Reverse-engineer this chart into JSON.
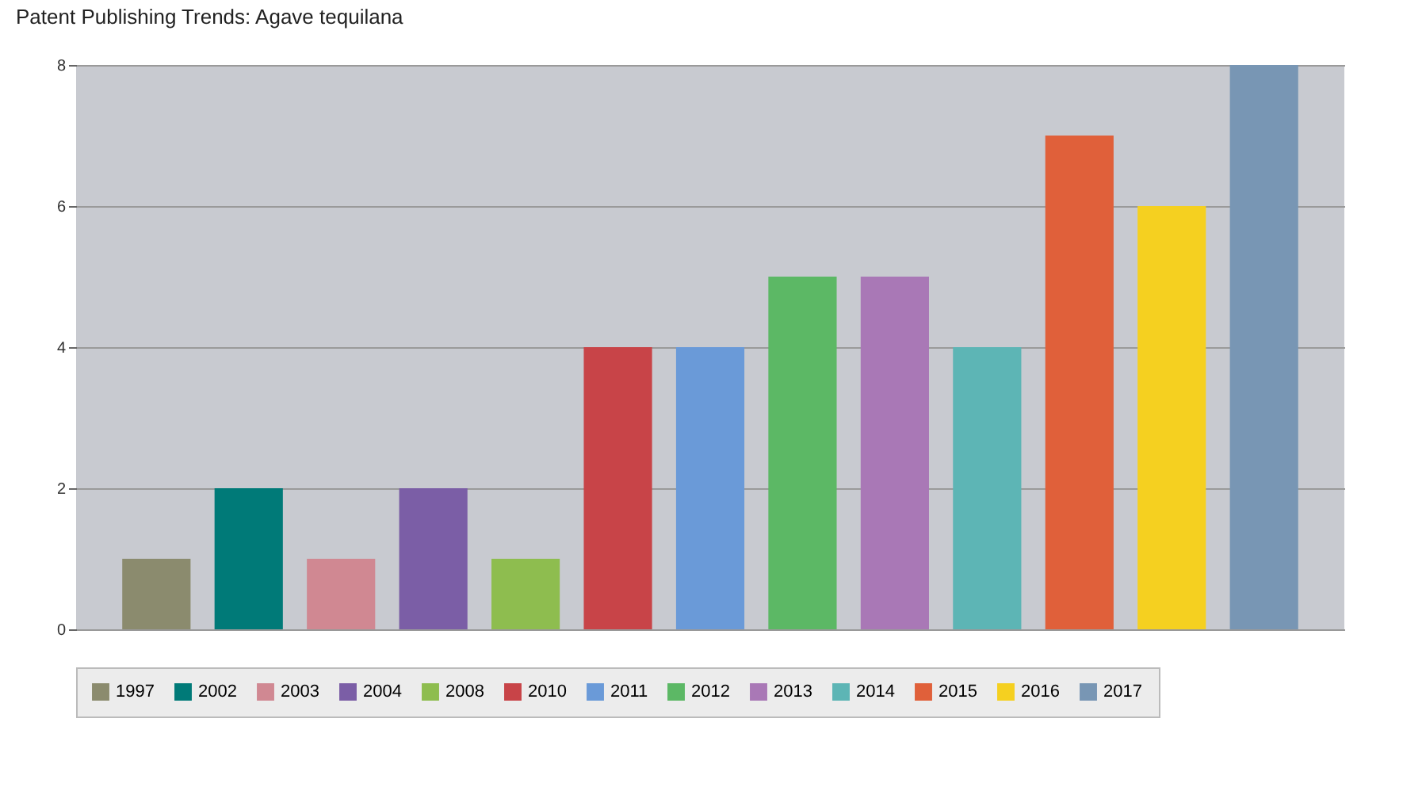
{
  "chart_data": {
    "type": "bar",
    "title": "Patent Publishing Trends: Agave tequilana",
    "categories": [
      null,
      null,
      null,
      null,
      null,
      null,
      null,
      null,
      null,
      null,
      null,
      null,
      null
    ],
    "series": [
      {
        "name": "1997",
        "color": "#8b8b6e",
        "values": [
          1,
          null,
          null,
          null,
          null,
          null,
          null,
          null,
          null,
          null,
          null,
          null,
          null
        ]
      },
      {
        "name": "2002",
        "color": "#007a78",
        "values": [
          null,
          2,
          null,
          null,
          null,
          null,
          null,
          null,
          null,
          null,
          null,
          null,
          null
        ]
      },
      {
        "name": "2003",
        "color": "#d08892",
        "values": [
          null,
          null,
          1,
          null,
          null,
          null,
          null,
          null,
          null,
          null,
          null,
          null,
          null
        ]
      },
      {
        "name": "2004",
        "color": "#7b5ea6",
        "values": [
          null,
          null,
          null,
          2,
          null,
          null,
          null,
          null,
          null,
          null,
          null,
          null,
          null
        ]
      },
      {
        "name": "2008",
        "color": "#8ebd4f",
        "values": [
          null,
          null,
          null,
          null,
          1,
          null,
          null,
          null,
          null,
          null,
          null,
          null,
          null
        ]
      },
      {
        "name": "2010",
        "color": "#c84448",
        "values": [
          null,
          null,
          null,
          null,
          null,
          4,
          null,
          null,
          null,
          null,
          null,
          null,
          null
        ]
      },
      {
        "name": "2011",
        "color": "#6a9ad8",
        "values": [
          null,
          null,
          null,
          null,
          null,
          null,
          4,
          null,
          null,
          null,
          null,
          null,
          null
        ]
      },
      {
        "name": "2012",
        "color": "#5cb865",
        "values": [
          null,
          null,
          null,
          null,
          null,
          null,
          null,
          5,
          null,
          null,
          null,
          null,
          null
        ]
      },
      {
        "name": "2013",
        "color": "#a978b6",
        "values": [
          null,
          null,
          null,
          null,
          null,
          null,
          null,
          null,
          5,
          null,
          null,
          null,
          null
        ]
      },
      {
        "name": "2014",
        "color": "#5db5b5",
        "values": [
          null,
          null,
          null,
          null,
          null,
          null,
          null,
          null,
          null,
          4,
          null,
          null,
          null
        ]
      },
      {
        "name": "2015",
        "color": "#e0603a",
        "values": [
          null,
          null,
          null,
          null,
          null,
          null,
          null,
          null,
          null,
          null,
          7,
          null,
          null
        ]
      },
      {
        "name": "2016",
        "color": "#f5d020",
        "values": [
          null,
          null,
          null,
          null,
          null,
          null,
          null,
          null,
          null,
          null,
          null,
          6,
          null
        ]
      },
      {
        "name": "2017",
        "color": "#7896b4",
        "values": [
          null,
          null,
          null,
          null,
          null,
          null,
          null,
          null,
          null,
          null,
          null,
          null,
          8
        ]
      }
    ],
    "ylim": [
      0,
      8
    ],
    "yticks": [
      0,
      2,
      4,
      6,
      8
    ],
    "grid": "y",
    "legend": "bottom",
    "tick_labels": "y"
  }
}
